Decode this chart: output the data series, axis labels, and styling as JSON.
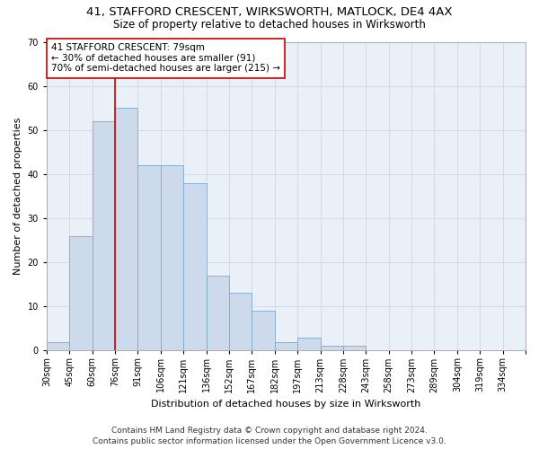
{
  "title_line1": "41, STAFFORD CRESCENT, WIRKSWORTH, MATLOCK, DE4 4AX",
  "title_line2": "Size of property relative to detached houses in Wirksworth",
  "xlabel": "Distribution of detached houses by size in Wirksworth",
  "ylabel": "Number of detached properties",
  "bar_values": [
    2,
    26,
    52,
    55,
    42,
    42,
    38,
    17,
    13,
    9,
    2,
    3,
    1,
    1,
    0,
    0,
    0,
    0,
    0,
    0,
    0
  ],
  "bar_labels": [
    "30sqm",
    "45sqm",
    "60sqm",
    "76sqm",
    "91sqm",
    "106sqm",
    "121sqm",
    "136sqm",
    "152sqm",
    "167sqm",
    "182sqm",
    "197sqm",
    "213sqm",
    "228sqm",
    "243sqm",
    "258sqm",
    "273sqm",
    "289sqm",
    "304sqm",
    "319sqm",
    "334sqm"
  ],
  "bar_color": "#ccdaec",
  "bar_edge_color": "#7fa8cc",
  "grid_color": "#d0d8e0",
  "background_color": "#eaf0f8",
  "vline_color": "#cc0000",
  "vline_x_index": 3,
  "annotation_text": "41 STAFFORD CRESCENT: 79sqm\n← 30% of detached houses are smaller (91)\n70% of semi-detached houses are larger (215) →",
  "annotation_box_color": "white",
  "annotation_box_edge_color": "#cc0000",
  "ylim": [
    0,
    70
  ],
  "yticks": [
    0,
    10,
    20,
    30,
    40,
    50,
    60,
    70
  ],
  "footer_line1": "Contains HM Land Registry data © Crown copyright and database right 2024.",
  "footer_line2": "Contains public sector information licensed under the Open Government Licence v3.0.",
  "title_fontsize": 9.5,
  "subtitle_fontsize": 8.5,
  "axis_label_fontsize": 8,
  "tick_fontsize": 7,
  "annotation_fontsize": 7.5,
  "footer_fontsize": 6.5
}
